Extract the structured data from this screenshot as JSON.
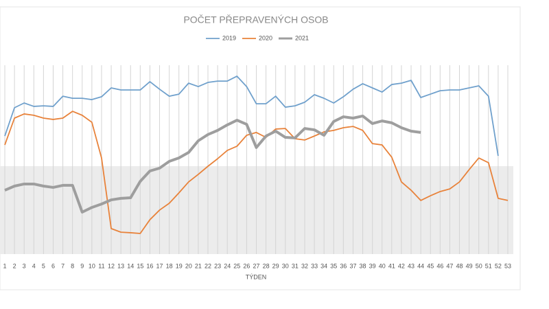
{
  "chart_data": {
    "type": "line",
    "title": "POČET PŘEPRAVENÝCH OSOB",
    "x_label": "TÝDEN",
    "categories": [
      "1",
      "2",
      "3",
      "4",
      "5",
      "6",
      "7",
      "8",
      "9",
      "10",
      "11",
      "12",
      "13",
      "14",
      "15",
      "16",
      "17",
      "18",
      "19",
      "20",
      "21",
      "22",
      "23",
      "24",
      "25",
      "26",
      "27",
      "28",
      "29",
      "30",
      "31",
      "32",
      "33",
      "34",
      "35",
      "36",
      "37",
      "38",
      "39",
      "40",
      "41",
      "42",
      "43",
      "44",
      "45",
      "46",
      "47",
      "48",
      "49",
      "50",
      "51",
      "52",
      "53"
    ],
    "ylim": [
      0,
      100
    ],
    "grid": true,
    "legend": "top",
    "series": [
      {
        "name": "2019",
        "color": "#6fa0cc",
        "width": 1.8,
        "values": [
          62.5,
          77.5,
          80,
          78.2,
          78.5,
          78.2,
          83.6,
          82.5,
          82.5,
          81.8,
          83.3,
          88,
          86.9,
          86.9,
          86.9,
          91.3,
          87.3,
          83.6,
          84.7,
          90.5,
          88.7,
          90.9,
          91.6,
          91.6,
          94.2,
          88.7,
          79.6,
          79.6,
          83.6,
          77.8,
          78.5,
          80.4,
          84.4,
          82.5,
          80,
          83.3,
          87.3,
          90.2,
          88,
          85.8,
          89.8,
          90.5,
          92,
          82.9,
          84.7,
          86.5,
          86.9,
          86.9,
          88,
          89.1,
          83.6,
          52,
          null
        ]
      },
      {
        "name": "2020",
        "color": "#e8823a",
        "width": 1.8,
        "values": [
          57.8,
          72,
          74.2,
          73.5,
          72,
          71.3,
          72,
          75.6,
          73.5,
          69.8,
          50.9,
          13.5,
          11.6,
          11.3,
          10.9,
          18.2,
          23.3,
          26.9,
          32.4,
          38.2,
          42.2,
          46.5,
          50.5,
          54.9,
          57.1,
          62.9,
          64.4,
          61.8,
          66.2,
          66.5,
          61.1,
          60.4,
          62.5,
          64.7,
          65.5,
          66.9,
          67.6,
          65.5,
          58.5,
          57.8,
          51.3,
          38.2,
          33.8,
          28.4,
          30.9,
          33.1,
          34.5,
          38.2,
          44.7,
          50.9,
          48.4,
          29.5,
          28.4
        ]
      },
      {
        "name": "2021",
        "color": "#9e9e9e",
        "width": 4,
        "values": [
          33.8,
          36,
          37.1,
          37.1,
          36,
          35.3,
          36.4,
          36.4,
          22.2,
          24.7,
          26.5,
          28.7,
          29.5,
          29.8,
          38.5,
          44,
          45.5,
          49.1,
          50.9,
          53.8,
          60,
          63.3,
          65.5,
          68.4,
          70.9,
          68.7,
          56.4,
          62.5,
          65.1,
          61.8,
          61.5,
          66.5,
          65.8,
          62.9,
          70.2,
          72.7,
          72,
          73.1,
          69.1,
          70.5,
          69.5,
          66.9,
          65.1,
          64.4,
          null,
          null,
          null,
          null,
          null,
          null,
          null,
          null,
          null
        ]
      }
    ]
  }
}
